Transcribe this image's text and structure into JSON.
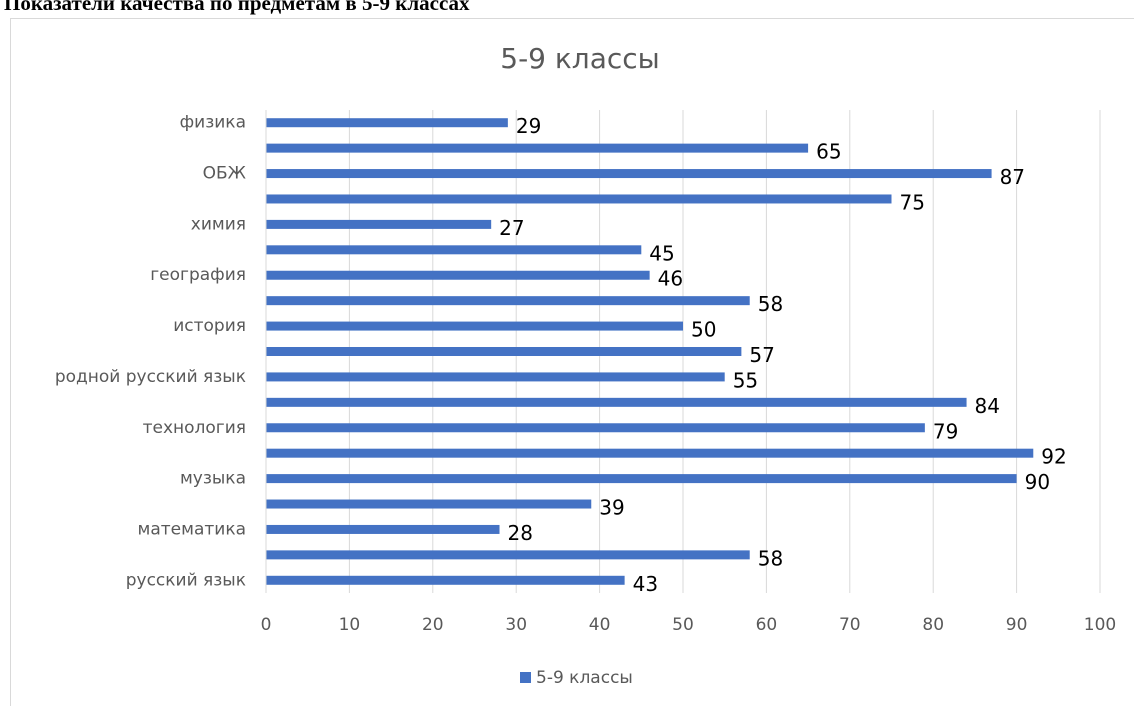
{
  "heading": "Показатели качества по предметам в 5-9 классах",
  "chart_data": {
    "type": "hbar",
    "title": "5-9 классы",
    "categories": [
      "русский язык",
      null,
      "математика",
      null,
      "музыка",
      null,
      "технология",
      null,
      "родной русский язык",
      null,
      "история",
      null,
      "география",
      null,
      "химия",
      null,
      "ОБЖ",
      null,
      "физика"
    ],
    "series": [
      {
        "name": "5-9 классы",
        "color": "#4472c4",
        "values": [
          43,
          58,
          28,
          39,
          90,
          92,
          79,
          84,
          55,
          57,
          50,
          58,
          46,
          45,
          27,
          75,
          87,
          65,
          29
        ]
      }
    ],
    "xlim": [
      0,
      100
    ],
    "xticks": [
      0,
      10,
      20,
      30,
      40,
      50,
      60,
      70,
      80,
      90,
      100
    ],
    "grid": true,
    "legend": "bottom",
    "data_labels": true
  }
}
